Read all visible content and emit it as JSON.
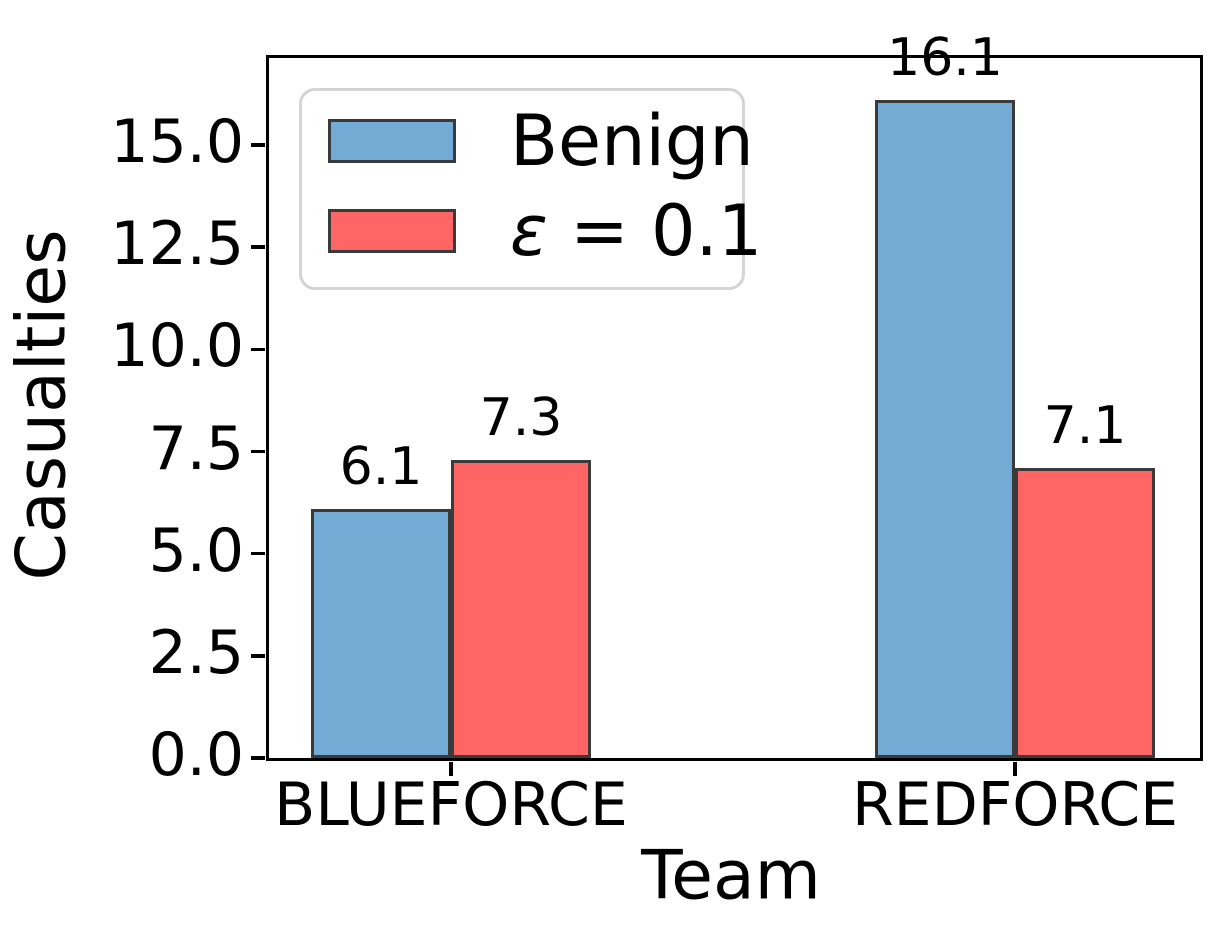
{
  "chart_data": {
    "type": "bar",
    "title": "",
    "xlabel": "Team",
    "ylabel": "Casualties",
    "categories": [
      "BLUEFORCE",
      "REDFORCE"
    ],
    "series": [
      {
        "name": "Benign",
        "color": "#74abd4",
        "values": [
          6.1,
          16.1
        ]
      },
      {
        "name": "ε = 0.1",
        "color": "#ff6565",
        "values": [
          7.3,
          7.1
        ]
      }
    ],
    "bar_value_labels": [
      "6.1",
      "7.3",
      "16.1",
      "7.1"
    ],
    "bar_edge_color": "#3a3a3a",
    "ytick_labels": [
      "0.0",
      "2.5",
      "5.0",
      "7.5",
      "10.0",
      "12.5",
      "15.0"
    ],
    "ylim": [
      0,
      17.13
    ],
    "grid": false,
    "background": "#ffffff",
    "legend": {
      "position": "upper-left",
      "entries": [
        {
          "label": "Benign"
        },
        {
          "label": "ε = 0.1",
          "symbol": "ε",
          "rest": " = 0.1"
        }
      ]
    }
  }
}
